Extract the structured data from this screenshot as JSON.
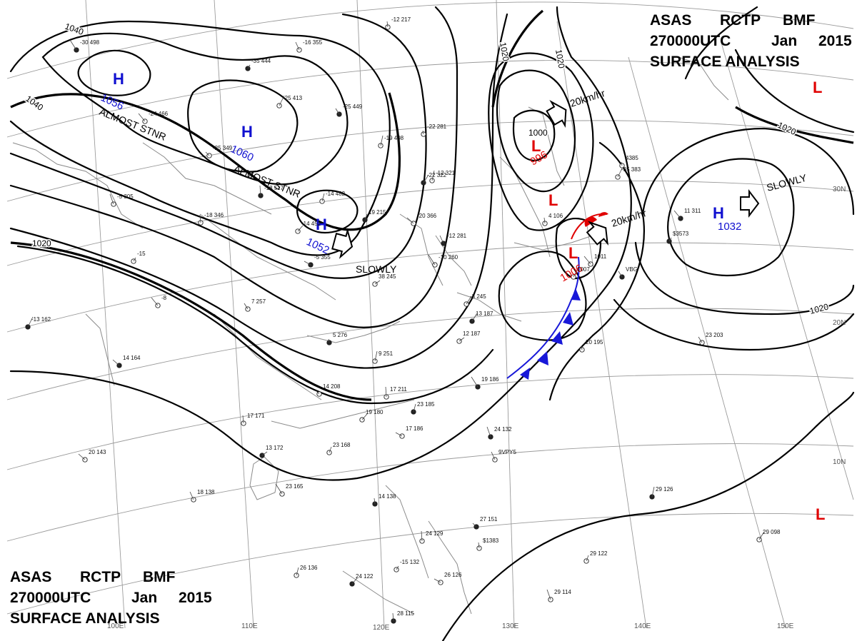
{
  "header": {
    "agency": "ASAS",
    "issuer": "RCTP",
    "center": "BMF",
    "datetime": "270000UTC",
    "month": "Jan",
    "year": "2015",
    "product": "SURFACE ANALYSIS"
  },
  "colors": {
    "high": "#1010d0",
    "low": "#e00000",
    "isobar": "#000000",
    "grid": "#9a9a9a",
    "coast": "#8a8a8a",
    "cold_front": "#1818d8",
    "warm_front": "#e00000"
  },
  "pressure_centers": [
    {
      "type": "H",
      "value": "1056",
      "note": "ALMOST STNR",
      "color": "high"
    },
    {
      "type": "H",
      "value": "1060",
      "note": "ALMOST STNR",
      "color": "high"
    },
    {
      "type": "H",
      "value": "1052",
      "note": "SLOWLY",
      "color": "high"
    },
    {
      "type": "H",
      "value": "1032",
      "note": "SLOWLY",
      "color": "high"
    },
    {
      "type": "L",
      "value": "996",
      "note": "20km/hr",
      "color": "low"
    },
    {
      "type": "L",
      "value": "1006",
      "note": "20km/hr",
      "color": "low"
    },
    {
      "type": "L",
      "value": "",
      "note": "",
      "color": "low"
    },
    {
      "type": "L",
      "value": "",
      "note": "",
      "color": "low"
    },
    {
      "type": "L",
      "value": "",
      "note": "",
      "color": "low"
    }
  ],
  "isobar_labels": [
    "1040",
    "1040",
    "1020",
    "1020",
    "1020",
    "1020",
    "1020",
    "1000"
  ],
  "lat_labels": [
    "30N",
    "20N",
    "10N"
  ],
  "lon_labels": [
    "100E",
    "110E",
    "120E",
    "130E",
    "140E",
    "150E"
  ],
  "station_labels": [
    "-30 498",
    "-16 355",
    "-12 217",
    "-35 444",
    "-25 413",
    "-24 466",
    "-25 449",
    "-22 281",
    "-19 408",
    "-22 322",
    "-20 366",
    "-25 349",
    "-18 517",
    "-14 482",
    "-14 452",
    "-5 355",
    "-5 305",
    "-18 346",
    "19 215",
    "38 245",
    "-10 260",
    "-12 281",
    "4 106",
    "-15",
    "-13 162",
    "-8",
    "7 257",
    "5 276",
    "9 251",
    "-3 245",
    "14 164",
    "14 208",
    "17 211",
    "23 185",
    "19 180",
    "17 186",
    "24 132",
    "17 171",
    "23 168",
    "13 172",
    "23 165",
    "18 138",
    "14 138",
    "-15 132",
    "-35 383",
    "11 311",
    "23 203",
    "20 195",
    "29 126",
    "29 098",
    "20 143",
    "27 151",
    "24 129",
    "26 136",
    "24 122",
    "26 126",
    "29 114",
    "28 115",
    "29 122",
    "12 187",
    "19 186",
    "9VPY5",
    "$1383",
    "$3573",
    "1007",
    "1011",
    "VBG",
    "4385",
    "-12 321",
    "13 187"
  ]
}
